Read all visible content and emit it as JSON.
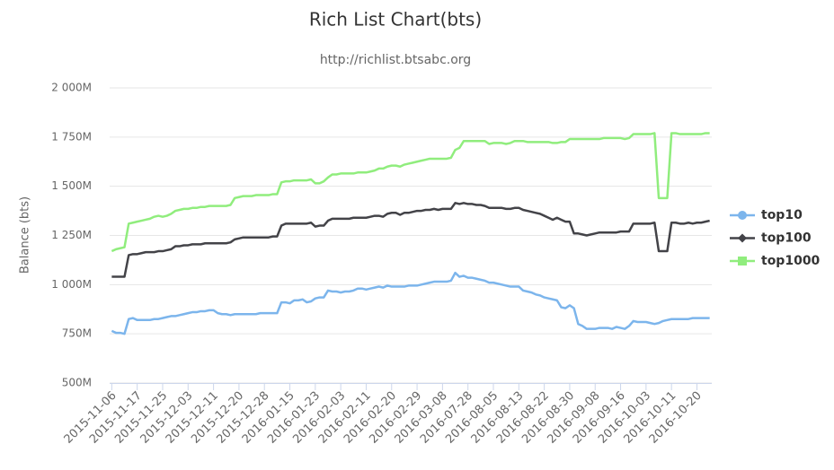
{
  "chart_data": {
    "type": "line",
    "title": "Rich List Chart(bts)",
    "subtitle": "http://richlist.btsabc.org",
    "y_label": "Balance (bts)",
    "categories": [
      "2015-11-06",
      null,
      null,
      null,
      null,
      null,
      "2015-11-17",
      null,
      null,
      null,
      null,
      null,
      "2015-11-25",
      null,
      null,
      null,
      null,
      null,
      "2015-12-03",
      null,
      null,
      null,
      null,
      null,
      "2015-12-11",
      null,
      null,
      null,
      null,
      null,
      "2015-12-20",
      null,
      null,
      null,
      null,
      null,
      "2015-12-28",
      null,
      null,
      null,
      null,
      null,
      "2016-01-15",
      null,
      null,
      null,
      null,
      null,
      "2016-01-23",
      null,
      null,
      null,
      null,
      null,
      "2016-02-03",
      null,
      null,
      null,
      null,
      null,
      "2016-02-11",
      null,
      null,
      null,
      null,
      null,
      "2016-02-20",
      null,
      null,
      null,
      null,
      null,
      "2016-02-29",
      null,
      null,
      null,
      null,
      null,
      "2016-03-08",
      null,
      null,
      null,
      null,
      null,
      "2016-07-28",
      null,
      null,
      null,
      null,
      null,
      "2016-08-05",
      null,
      null,
      null,
      null,
      null,
      "2016-08-13",
      null,
      null,
      null,
      null,
      null,
      "2016-08-22",
      null,
      null,
      null,
      null,
      null,
      "2016-08-30",
      null,
      null,
      null,
      null,
      null,
      "2016-09-08",
      null,
      null,
      null,
      null,
      null,
      "2016-09-16",
      null,
      null,
      null,
      null,
      null,
      "2016-10-03",
      null,
      null,
      null,
      null,
      null,
      "2016-10-11",
      null,
      null,
      null,
      null,
      null,
      "2016-10-20",
      null,
      null,
      null
    ],
    "series": [
      {
        "name": "top10",
        "color": "#7cb5ec",
        "marker": "circle",
        "values": [
          765,
          755,
          755,
          750,
          825,
          830,
          820,
          820,
          820,
          820,
          825,
          825,
          830,
          835,
          840,
          840,
          845,
          850,
          855,
          860,
          860,
          865,
          865,
          870,
          870,
          855,
          850,
          850,
          845,
          850,
          850,
          850,
          850,
          850,
          850,
          855,
          855,
          855,
          855,
          855,
          910,
          910,
          905,
          920,
          920,
          925,
          910,
          915,
          930,
          935,
          935,
          970,
          965,
          965,
          960,
          965,
          965,
          970,
          980,
          980,
          975,
          980,
          985,
          990,
          985,
          995,
          990,
          990,
          990,
          990,
          995,
          995,
          995,
          1000,
          1005,
          1010,
          1015,
          1015,
          1015,
          1015,
          1020,
          1060,
          1040,
          1045,
          1035,
          1035,
          1030,
          1025,
          1020,
          1010,
          1010,
          1005,
          1000,
          995,
          990,
          990,
          990,
          970,
          965,
          960,
          950,
          945,
          935,
          930,
          925,
          920,
          885,
          880,
          895,
          880,
          800,
          790,
          775,
          775,
          775,
          780,
          780,
          780,
          775,
          785,
          780,
          775,
          790,
          815,
          810,
          810,
          810,
          805,
          800,
          805,
          815,
          820,
          825,
          825,
          825,
          825,
          825,
          830,
          830,
          830,
          830,
          830
        ]
      },
      {
        "name": "top100",
        "color": "#434348",
        "marker": "diamond",
        "values": [
          1040,
          1040,
          1040,
          1040,
          1150,
          1155,
          1155,
          1160,
          1165,
          1165,
          1165,
          1170,
          1170,
          1175,
          1180,
          1195,
          1195,
          1200,
          1200,
          1205,
          1205,
          1205,
          1210,
          1210,
          1210,
          1210,
          1210,
          1210,
          1215,
          1230,
          1235,
          1240,
          1240,
          1240,
          1240,
          1240,
          1240,
          1240,
          1245,
          1245,
          1300,
          1310,
          1310,
          1310,
          1310,
          1310,
          1310,
          1315,
          1295,
          1300,
          1300,
          1325,
          1335,
          1335,
          1335,
          1335,
          1335,
          1340,
          1340,
          1340,
          1340,
          1345,
          1350,
          1350,
          1345,
          1360,
          1365,
          1365,
          1355,
          1365,
          1365,
          1370,
          1375,
          1375,
          1380,
          1380,
          1385,
          1380,
          1385,
          1385,
          1385,
          1415,
          1410,
          1415,
          1410,
          1410,
          1405,
          1405,
          1400,
          1390,
          1390,
          1390,
          1390,
          1385,
          1385,
          1390,
          1390,
          1380,
          1375,
          1370,
          1365,
          1360,
          1350,
          1340,
          1330,
          1340,
          1330,
          1320,
          1320,
          1260,
          1260,
          1255,
          1250,
          1255,
          1260,
          1265,
          1265,
          1265,
          1265,
          1265,
          1270,
          1270,
          1270,
          1310,
          1310,
          1310,
          1310,
          1310,
          1315,
          1170,
          1170,
          1170,
          1315,
          1315,
          1310,
          1310,
          1315,
          1310,
          1315,
          1315,
          1320,
          1325
        ]
      },
      {
        "name": "top1000",
        "color": "#90ed7d",
        "marker": "square",
        "values": [
          1170,
          1180,
          1185,
          1190,
          1310,
          1315,
          1320,
          1325,
          1330,
          1335,
          1345,
          1350,
          1345,
          1350,
          1360,
          1375,
          1380,
          1385,
          1385,
          1390,
          1390,
          1395,
          1395,
          1400,
          1400,
          1400,
          1400,
          1400,
          1405,
          1440,
          1445,
          1450,
          1450,
          1450,
          1455,
          1455,
          1455,
          1455,
          1460,
          1460,
          1520,
          1525,
          1525,
          1530,
          1530,
          1530,
          1530,
          1535,
          1515,
          1515,
          1525,
          1545,
          1560,
          1560,
          1565,
          1565,
          1565,
          1565,
          1570,
          1570,
          1570,
          1575,
          1580,
          1590,
          1590,
          1600,
          1605,
          1605,
          1600,
          1610,
          1615,
          1620,
          1625,
          1630,
          1635,
          1640,
          1640,
          1640,
          1640,
          1640,
          1645,
          1685,
          1695,
          1730,
          1730,
          1730,
          1730,
          1730,
          1730,
          1715,
          1720,
          1720,
          1720,
          1715,
          1720,
          1730,
          1730,
          1730,
          1725,
          1725,
          1725,
          1725,
          1725,
          1725,
          1720,
          1720,
          1725,
          1725,
          1740,
          1740,
          1740,
          1740,
          1740,
          1740,
          1740,
          1740,
          1745,
          1745,
          1745,
          1745,
          1745,
          1740,
          1745,
          1765,
          1765,
          1765,
          1765,
          1765,
          1770,
          1440,
          1440,
          1440,
          1770,
          1770,
          1765,
          1765,
          1765,
          1765,
          1765,
          1765,
          1770,
          1770
        ]
      }
    ],
    "ylim": [
      500,
      2000
    ],
    "yticks": [
      {
        "value": 500,
        "label": "500M"
      },
      {
        "value": 750,
        "label": "750M"
      },
      {
        "value": 1000,
        "label": "1 000M"
      },
      {
        "value": 1250,
        "label": "1 250M"
      },
      {
        "value": 1500,
        "label": "1 500M"
      },
      {
        "value": 1750,
        "label": "1 750M"
      },
      {
        "value": 2000,
        "label": "2 000M"
      }
    ],
    "grid": true,
    "legend": "right"
  }
}
